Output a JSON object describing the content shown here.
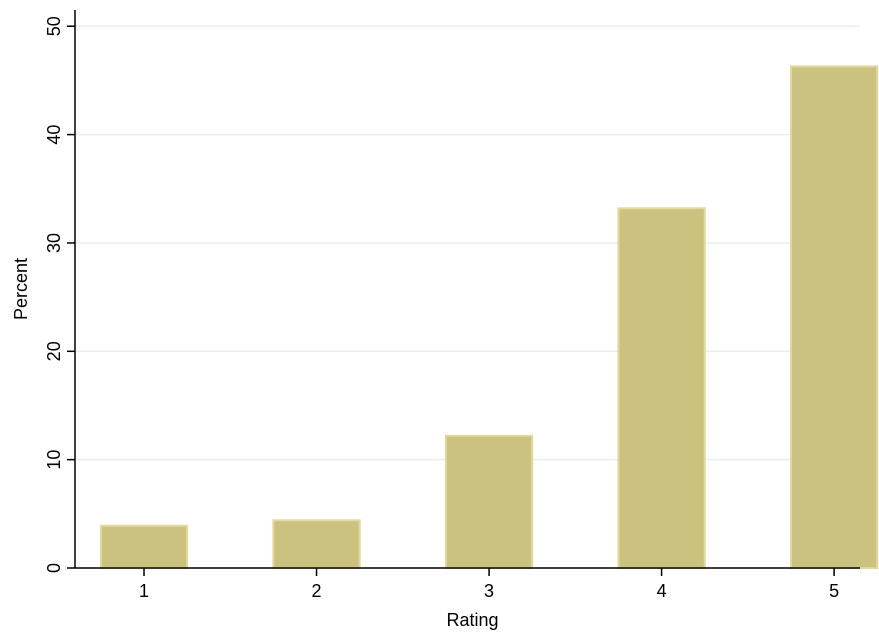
{
  "chart_data": {
    "type": "bar",
    "title": "",
    "xlabel": "Rating",
    "ylabel": "Percent",
    "categories": [
      "1",
      "2",
      "3",
      "4",
      "5"
    ],
    "x": [
      1,
      2,
      3,
      4,
      5
    ],
    "values": [
      3.9,
      4.4,
      12.2,
      33.2,
      46.3
    ],
    "ylim": [
      0,
      50
    ],
    "yticks": [
      0,
      10,
      20,
      30,
      40,
      50
    ],
    "xticks": [
      "1",
      "2",
      "3",
      "4",
      "5"
    ],
    "grid": "horizontal",
    "legend": "none",
    "colors": {
      "bar_fill": "#ccc27f",
      "bar_stroke": "#e0d89c",
      "grid": "#e6eef3",
      "axis": "#000000"
    }
  }
}
